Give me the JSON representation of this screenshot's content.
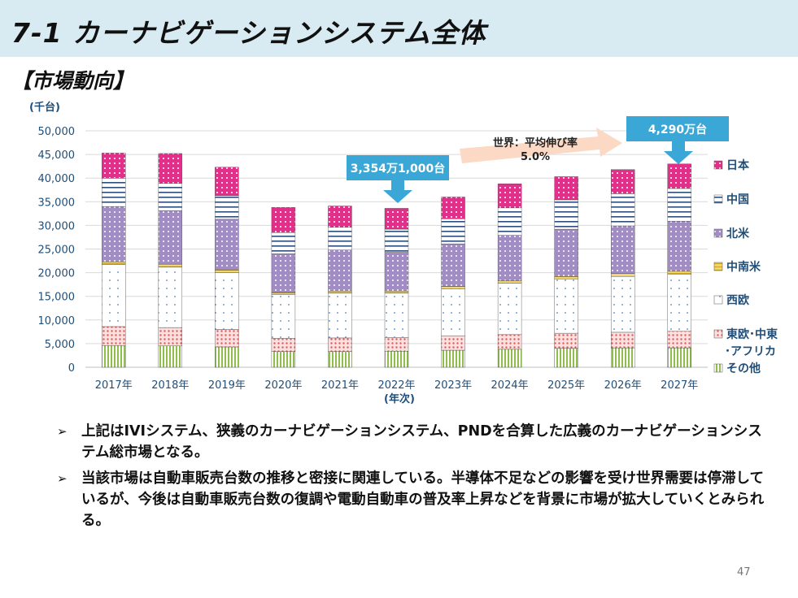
{
  "page": {
    "title": "7-1 カーナビゲーションシステム全体",
    "subtitle": "【市場動向】",
    "page_number": "47"
  },
  "bullets": [
    "上記はIVIシステム、狭義のカーナビゲーションシステム、PNDを合算した広義のカーナビゲーションシステム総市場となる。",
    "当該市場は自動車販売台数の推移と密接に関連している。半導体不足などの影響を受け世界需要は停滞しているが、今後は自動車販売台数の復調や電動自動車の普及率上昇などを背景に市場が拡大していくとみられる。"
  ],
  "chart_data": {
    "type": "bar",
    "stacked": true,
    "unit_label": "(千台)",
    "xlabel": "(年次)",
    "ylim": [
      0,
      50000
    ],
    "yticks": [
      "0",
      "5,000",
      "10,000",
      "15,000",
      "20,000",
      "25,000",
      "30,000",
      "35,000",
      "40,000",
      "45,000",
      "50,000"
    ],
    "categories": [
      "2017年",
      "2018年",
      "2019年",
      "2020年",
      "2021年",
      "2022年",
      "2023年",
      "2024年",
      "2025年",
      "2026年",
      "2027年"
    ],
    "series": [
      {
        "name": "その他",
        "color": "#8fbf4a",
        "values": [
          4600,
          4500,
          4300,
          3300,
          3300,
          3400,
          3600,
          3800,
          4000,
          4100,
          4100
        ]
      },
      {
        "name": "東欧･中東･アフリカ",
        "color": "#e05a5a",
        "values": [
          4000,
          3900,
          3700,
          2800,
          2900,
          2900,
          3000,
          3100,
          3200,
          3300,
          3500
        ]
      },
      {
        "name": "西欧",
        "color": "#4a7ebb",
        "values": [
          13100,
          12800,
          12000,
          9300,
          9500,
          9400,
          10000,
          10900,
          11500,
          11800,
          12100
        ]
      },
      {
        "name": "中南米",
        "color": "#e8c440",
        "values": [
          600,
          600,
          600,
          400,
          400,
          400,
          500,
          500,
          500,
          600,
          600
        ]
      },
      {
        "name": "北米",
        "color": "#a28cc4",
        "values": [
          11700,
          11300,
          10700,
          8200,
          8700,
          8200,
          9000,
          9600,
          10000,
          10100,
          10600
        ]
      },
      {
        "name": "中国",
        "color": "#2e4d7a",
        "values": [
          6000,
          5800,
          5000,
          4500,
          4800,
          4900,
          5300,
          5800,
          6200,
          6800,
          6900
        ]
      },
      {
        "name": "日本",
        "color": "#e2308a",
        "values": [
          5300,
          6300,
          6000,
          5300,
          4500,
          4400,
          4600,
          5100,
          4900,
          5100,
          5200
        ]
      }
    ],
    "legend": [
      "日本",
      "中国",
      "北米",
      "中南米",
      "西欧",
      "東欧･中東",
      "･アフリカ",
      "その他"
    ],
    "annotations": {
      "callout_2022": "3,354万1,000台",
      "callout_2027": "4,290万台",
      "growth_line1": "世界：平均伸び率",
      "growth_line2": "5.0%"
    }
  }
}
